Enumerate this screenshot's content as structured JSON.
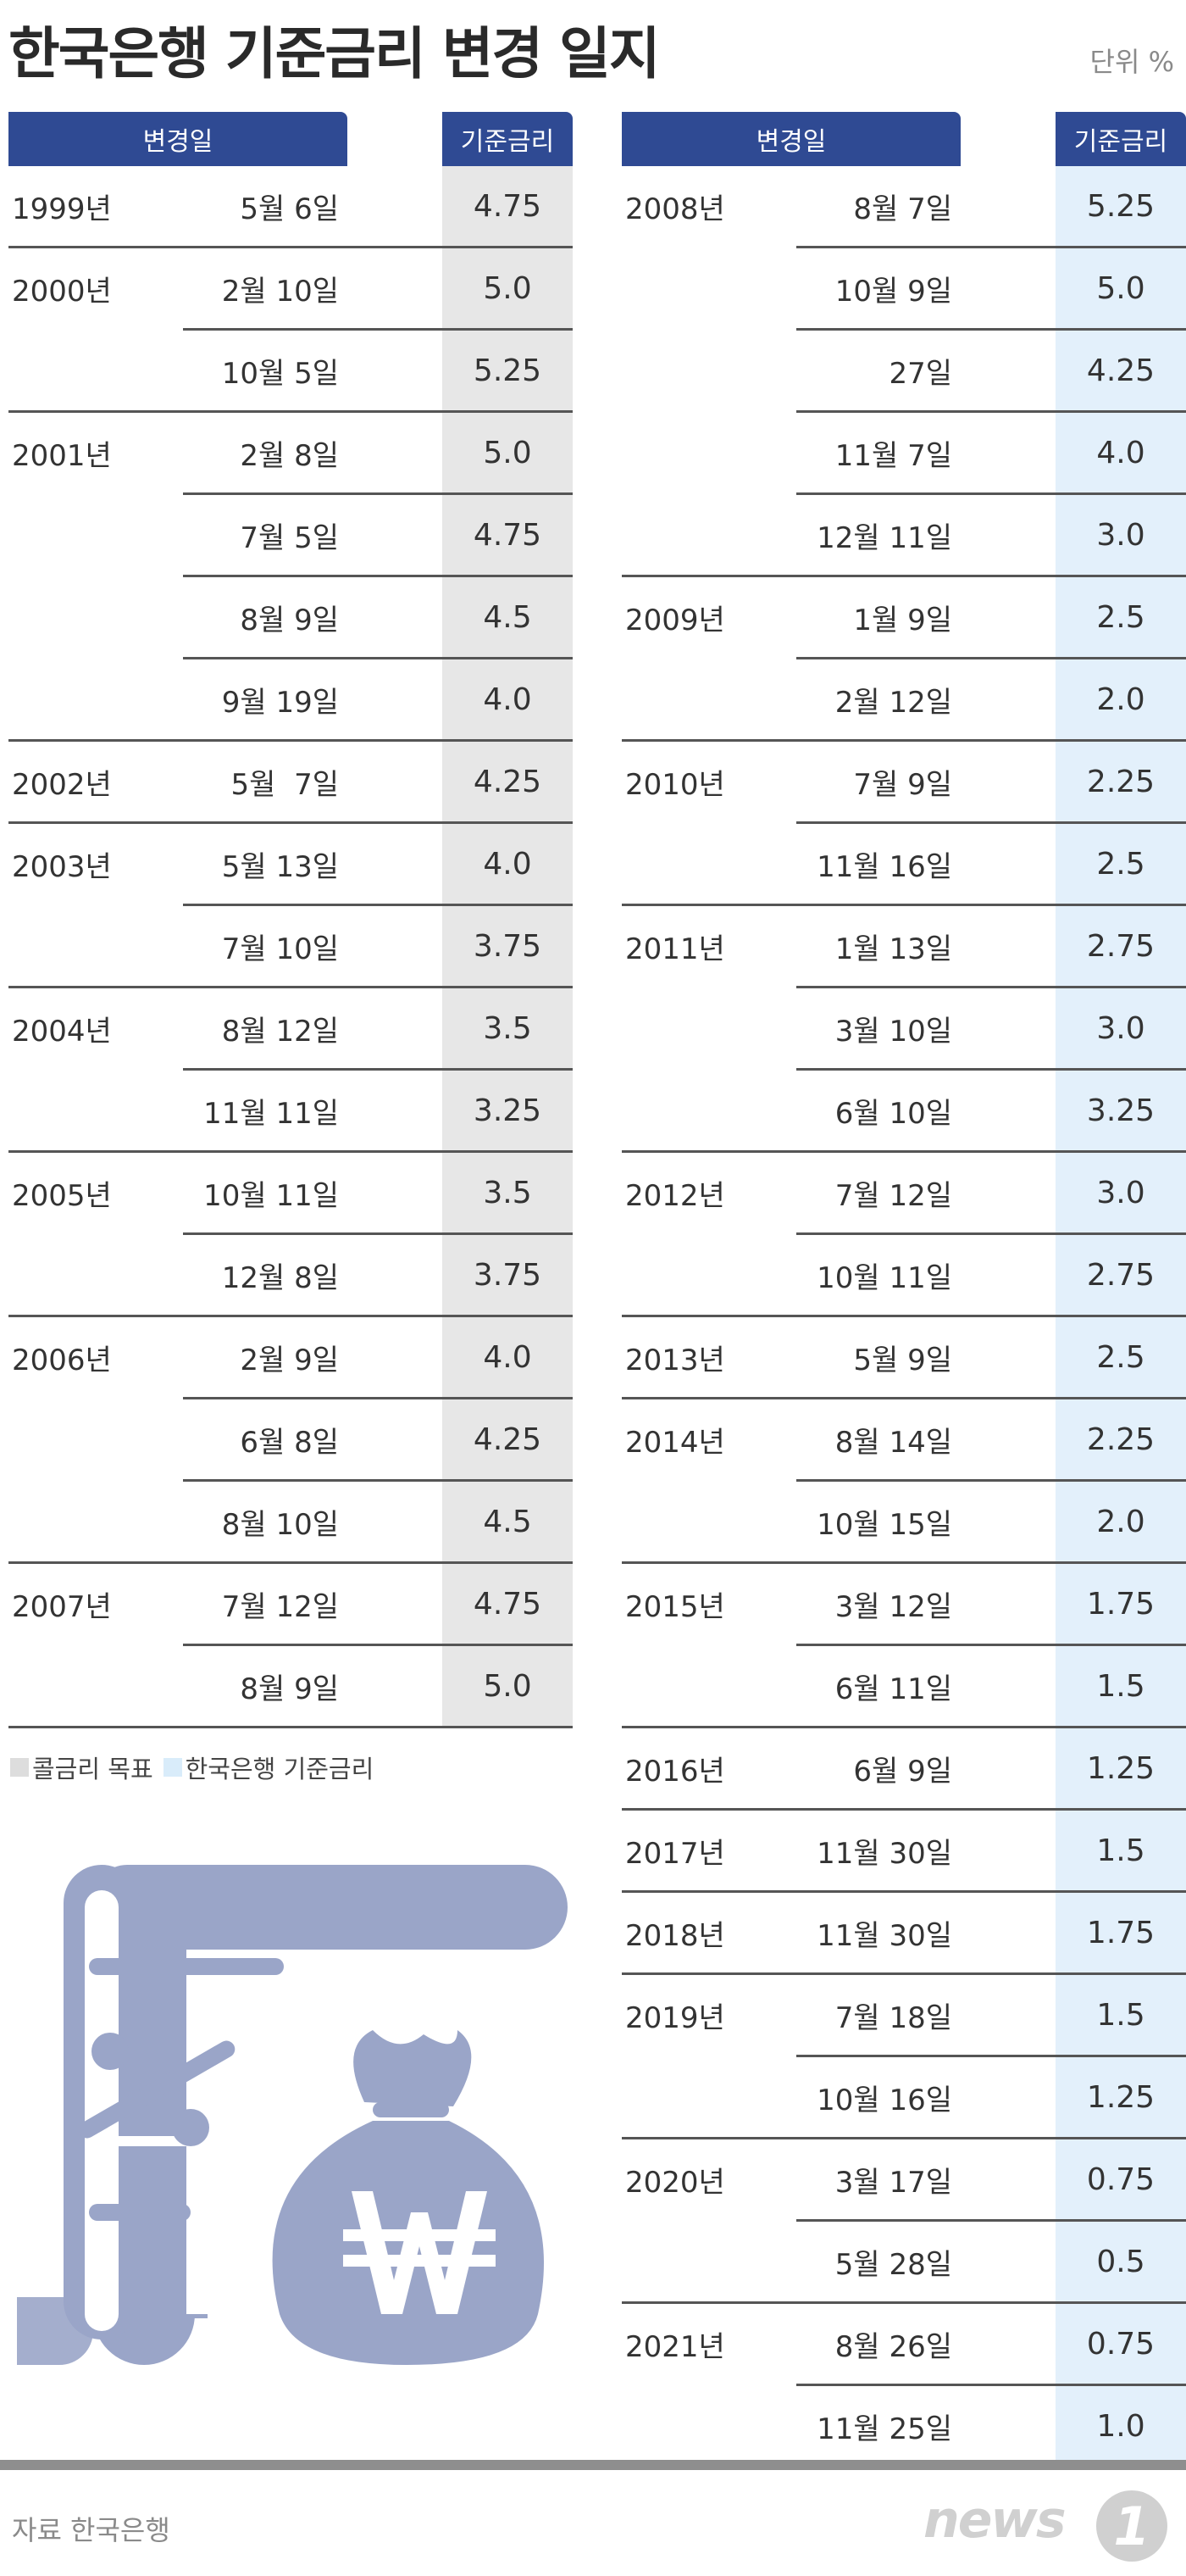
{
  "title": "한국은행 기준금리 변경 일지",
  "unit": "단위 %",
  "headers": {
    "date": "변경일",
    "rate": "기준금리"
  },
  "legend": {
    "call_rate": "콜금리 목표",
    "base_rate": "한국은행 기준금리"
  },
  "source": "자료  한국은행",
  "logo_text": "news",
  "logo_mark": "1",
  "colors": {
    "header": "#2f4a93",
    "call_bg": "#e7e7e7",
    "base_bg": "#e3f0fb",
    "icon": "#9aa5c8"
  },
  "icons": [
    "document-icon",
    "percent-icon",
    "money-bag-icon",
    "won-icon"
  ],
  "chart_data": {
    "type": "table",
    "columns": [
      "변경일",
      "기준금리"
    ],
    "left_table": [
      {
        "year": "1999년",
        "date": "5월 6일",
        "rate": "4.75"
      },
      {
        "year": "2000년",
        "date": "2월 10일",
        "rate": "5.0"
      },
      {
        "year": "",
        "date": "10월 5일",
        "rate": "5.25"
      },
      {
        "year": "2001년",
        "date": "2월 8일",
        "rate": "5.0"
      },
      {
        "year": "",
        "date": "7월 5일",
        "rate": "4.75"
      },
      {
        "year": "",
        "date": "8월 9일",
        "rate": "4.5"
      },
      {
        "year": "",
        "date": "9월 19일",
        "rate": "4.0"
      },
      {
        "year": "2002년",
        "date": "5월  7일",
        "rate": "4.25"
      },
      {
        "year": "2003년",
        "date": "5월 13일",
        "rate": "4.0"
      },
      {
        "year": "",
        "date": "7월 10일",
        "rate": "3.75"
      },
      {
        "year": "2004년",
        "date": "8월 12일",
        "rate": "3.5"
      },
      {
        "year": "",
        "date": "11월 11일",
        "rate": "3.25"
      },
      {
        "year": "2005년",
        "date": "10월 11일",
        "rate": "3.5"
      },
      {
        "year": "",
        "date": "12월 8일",
        "rate": "3.75"
      },
      {
        "year": "2006년",
        "date": "2월 9일",
        "rate": "4.0"
      },
      {
        "year": "",
        "date": "6월 8일",
        "rate": "4.25"
      },
      {
        "year": "",
        "date": "8월 10일",
        "rate": "4.5"
      },
      {
        "year": "2007년",
        "date": "7월 12일",
        "rate": "4.75"
      },
      {
        "year": "",
        "date": "8월 9일",
        "rate": "5.0"
      }
    ],
    "right_table": [
      {
        "year": "2008년",
        "date": "8월 7일",
        "rate": "5.25"
      },
      {
        "year": "",
        "date": "10월 9일",
        "rate": "5.0"
      },
      {
        "year": "",
        "date": "27일",
        "rate": "4.25"
      },
      {
        "year": "",
        "date": "11월 7일",
        "rate": "4.0"
      },
      {
        "year": "",
        "date": "12월 11일",
        "rate": "3.0"
      },
      {
        "year": "2009년",
        "date": "1월 9일",
        "rate": "2.5"
      },
      {
        "year": "",
        "date": "2월 12일",
        "rate": "2.0"
      },
      {
        "year": "2010년",
        "date": "7월 9일",
        "rate": "2.25"
      },
      {
        "year": "",
        "date": "11월 16일",
        "rate": "2.5"
      },
      {
        "year": "2011년",
        "date": "1월 13일",
        "rate": "2.75"
      },
      {
        "year": "",
        "date": "3월 10일",
        "rate": "3.0"
      },
      {
        "year": "",
        "date": "6월 10일",
        "rate": "3.25"
      },
      {
        "year": "2012년",
        "date": "7월 12일",
        "rate": "3.0"
      },
      {
        "year": "",
        "date": "10월 11일",
        "rate": "2.75"
      },
      {
        "year": "2013년",
        "date": "5월 9일",
        "rate": "2.5"
      },
      {
        "year": "2014년",
        "date": "8월 14일",
        "rate": "2.25"
      },
      {
        "year": "",
        "date": "10월 15일",
        "rate": "2.0"
      },
      {
        "year": "2015년",
        "date": "3월 12일",
        "rate": "1.75"
      },
      {
        "year": "",
        "date": "6월 11일",
        "rate": "1.5"
      },
      {
        "year": "2016년",
        "date": "6월 9일",
        "rate": "1.25"
      },
      {
        "year": "2017년",
        "date": "11월 30일",
        "rate": "1.5"
      },
      {
        "year": "2018년",
        "date": "11월 30일",
        "rate": "1.75"
      },
      {
        "year": "2019년",
        "date": "7월 18일",
        "rate": "1.5"
      },
      {
        "year": "",
        "date": "10월 16일",
        "rate": "1.25"
      },
      {
        "year": "2020년",
        "date": "3월 17일",
        "rate": "0.75"
      },
      {
        "year": "",
        "date": "5월 28일",
        "rate": "0.5"
      },
      {
        "year": "2021년",
        "date": "8월 26일",
        "rate": "0.75"
      },
      {
        "year": "",
        "date": "11월 25일",
        "rate": "1.0"
      }
    ]
  }
}
